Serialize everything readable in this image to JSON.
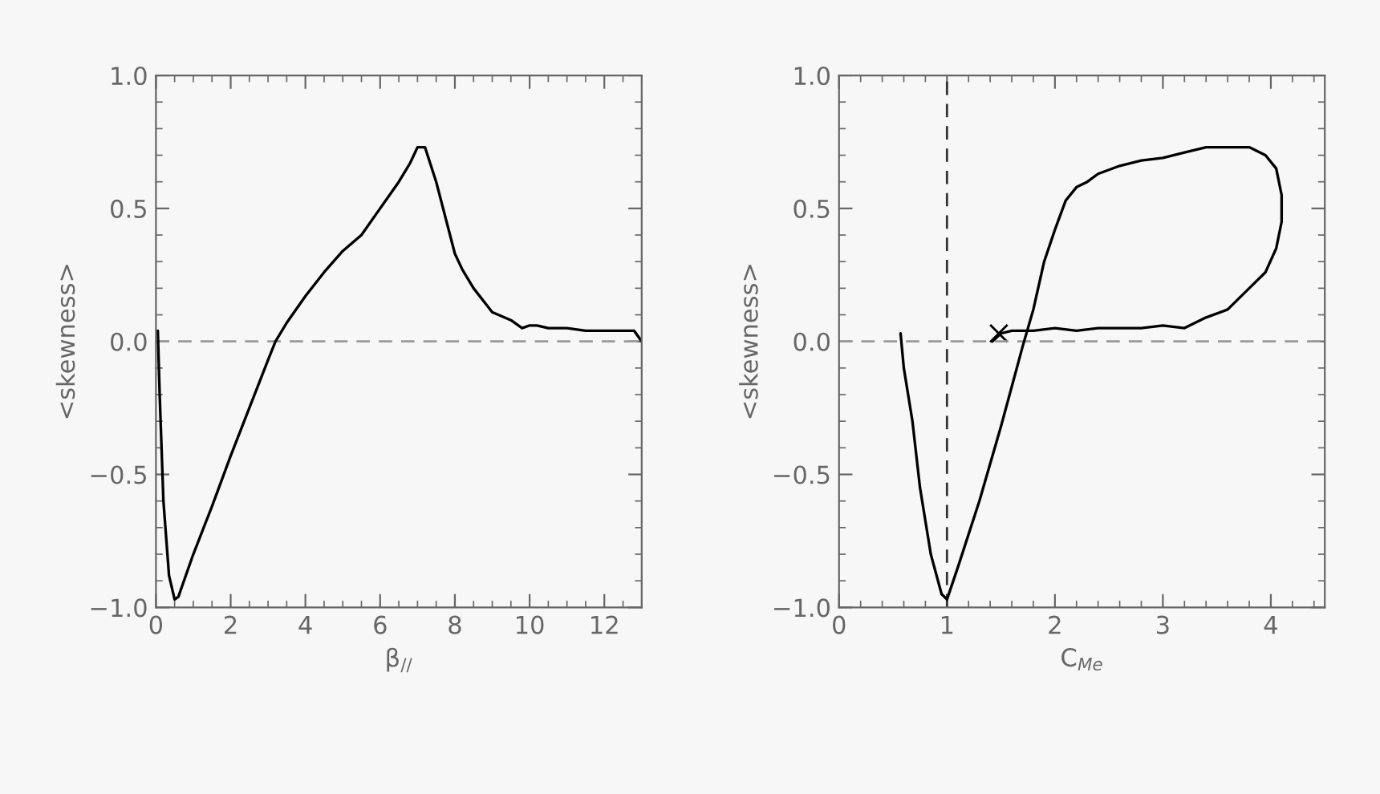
{
  "chart_data": [
    {
      "type": "line",
      "xlabel": "β$_{//}$",
      "ylabel": "<skewness>",
      "xlim": [
        0,
        13
      ],
      "ylim": [
        -1.0,
        1.0
      ],
      "xticks": [
        0,
        2,
        4,
        6,
        8,
        10,
        12
      ],
      "yticks": [
        {
          "value": -1.0,
          "label": "−1.0"
        },
        {
          "value": -0.5,
          "label": "−0.5"
        },
        {
          "value": 0.0,
          "label": "0.0"
        },
        {
          "value": 0.5,
          "label": "0.5"
        },
        {
          "value": 1.0,
          "label": "1.0"
        }
      ],
      "grid": false,
      "marker": "none",
      "line_style": "solid",
      "ref_lines": [
        {
          "axis": "y",
          "value": 0,
          "color": "#999999",
          "line_style": "dashed"
        }
      ],
      "series": [
        {
          "color": "#000000",
          "x": [
            0.05,
            0.1,
            0.2,
            0.35,
            0.5,
            0.6,
            0.8,
            1.0,
            1.5,
            2.0,
            2.5,
            3.0,
            3.2,
            3.5,
            4.0,
            4.5,
            5.0,
            5.5,
            6.0,
            6.5,
            6.8,
            7.0,
            7.2,
            7.5,
            8.0,
            8.2,
            8.5,
            9.0,
            9.5,
            9.8,
            10.0,
            10.2,
            10.5,
            11.0,
            11.5,
            12.0,
            12.5,
            12.8,
            13.0
          ],
          "values": [
            0.04,
            -0.2,
            -0.6,
            -0.88,
            -0.97,
            -0.96,
            -0.88,
            -0.8,
            -0.62,
            -0.43,
            -0.25,
            -0.07,
            0.0,
            0.07,
            0.17,
            0.26,
            0.34,
            0.4,
            0.5,
            0.6,
            0.67,
            0.73,
            0.73,
            0.6,
            0.33,
            0.27,
            0.2,
            0.11,
            0.08,
            0.05,
            0.06,
            0.06,
            0.05,
            0.05,
            0.04,
            0.04,
            0.04,
            0.04,
            0.0
          ]
        }
      ]
    },
    {
      "type": "line",
      "xlabel": "C$_{Me}$",
      "ylabel": "<skewness>",
      "xlim": [
        0,
        4.5
      ],
      "ylim": [
        -1.0,
        1.0
      ],
      "xticks": [
        0,
        1,
        2,
        3,
        4
      ],
      "yticks": [
        {
          "value": -1.0,
          "label": "−1.0"
        },
        {
          "value": -0.5,
          "label": "−0.5"
        },
        {
          "value": 0.0,
          "label": "0.0"
        },
        {
          "value": 0.5,
          "label": "0.5"
        },
        {
          "value": 1.0,
          "label": "1.0"
        }
      ],
      "grid": false,
      "marker": "none",
      "line_style": "solid",
      "ref_lines": [
        {
          "axis": "y",
          "value": 0,
          "color": "#999999",
          "line_style": "dashed"
        },
        {
          "axis": "x",
          "value": 1,
          "color": "#333333",
          "line_style": "dashed"
        }
      ],
      "series": [
        {
          "color": "#000000",
          "x": [
            0.57,
            0.6,
            0.68,
            0.75,
            0.85,
            0.95,
            1.0,
            1.1,
            1.3,
            1.5,
            1.7,
            1.8,
            1.9,
            2.0,
            2.1,
            2.2,
            2.3,
            2.4,
            2.6,
            2.8,
            3.0,
            3.2,
            3.4,
            3.6,
            3.8,
            3.95,
            4.05,
            4.1,
            4.1,
            4.05,
            3.95,
            3.8,
            3.6,
            3.4,
            3.2,
            3.0,
            2.8,
            2.6,
            2.4,
            2.2,
            2.0,
            1.8,
            1.6,
            1.5,
            1.42
          ],
          "values": [
            0.03,
            -0.1,
            -0.3,
            -0.55,
            -0.8,
            -0.95,
            -0.97,
            -0.85,
            -0.6,
            -0.32,
            -0.02,
            0.12,
            0.3,
            0.42,
            0.53,
            0.58,
            0.6,
            0.63,
            0.66,
            0.68,
            0.69,
            0.71,
            0.73,
            0.73,
            0.73,
            0.7,
            0.65,
            0.55,
            0.45,
            0.35,
            0.26,
            0.2,
            0.12,
            0.09,
            0.05,
            0.06,
            0.05,
            0.05,
            0.05,
            0.04,
            0.05,
            0.04,
            0.04,
            0.03,
            0.0
          ]
        },
        {
          "type": "scatter",
          "marker": "cross",
          "color": "#000000",
          "x": [
            1.48
          ],
          "values": [
            0.03
          ]
        }
      ]
    }
  ]
}
